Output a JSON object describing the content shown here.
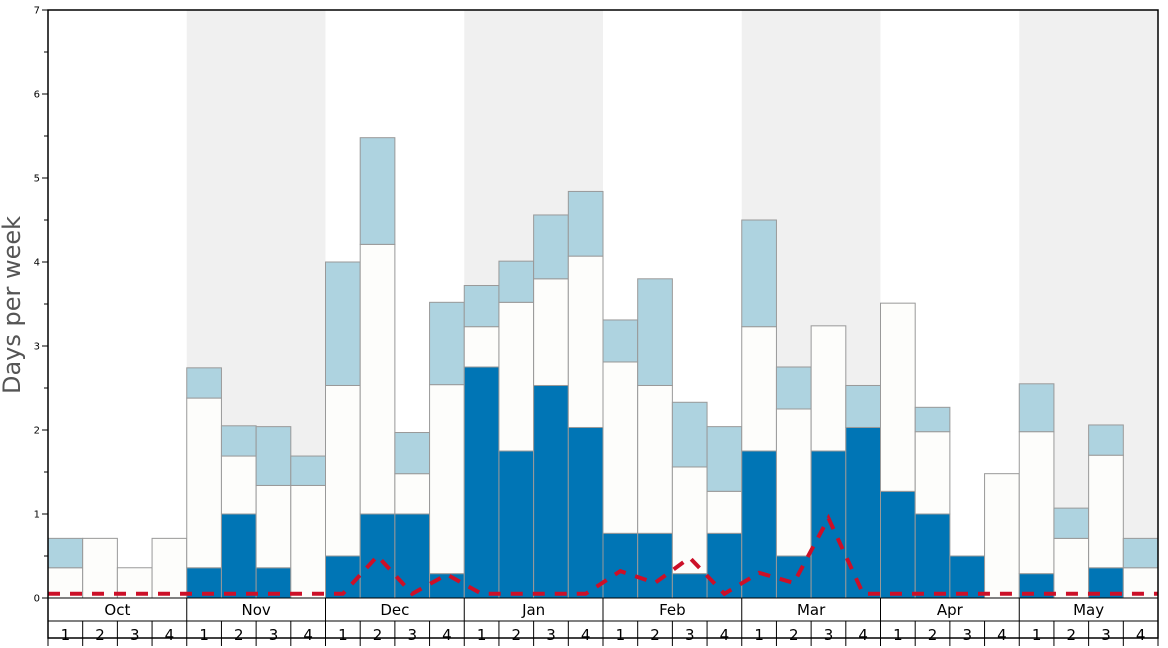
{
  "chart_data": {
    "type": "bar",
    "ylabel": "Days per week",
    "ylim": [
      0,
      7
    ],
    "y_ticks": [
      "0",
      "1",
      "2",
      "3",
      "4",
      "5",
      "6",
      "7"
    ],
    "months": [
      "Oct",
      "Nov",
      "Dec",
      "Jan",
      "Feb",
      "Mar",
      "Apr",
      "May"
    ],
    "weeks_per_month": [
      "1",
      "2",
      "3",
      "4"
    ],
    "series": [
      {
        "role": "dark",
        "values": [
          0,
          0,
          0,
          0,
          0.36,
          1,
          0.36,
          0,
          0.5,
          1,
          1,
          0.29,
          2.75,
          1.75,
          2.53,
          2.03,
          0.77,
          0.77,
          0.29,
          0.77,
          1.75,
          0.5,
          1.75,
          2.03,
          1.27,
          1,
          0.5,
          0,
          0.29,
          0,
          0.36,
          0
        ]
      },
      {
        "role": "white",
        "values": [
          0.36,
          0.71,
          0.36,
          0.71,
          2.02,
          0.69,
          0.98,
          1.34,
          2.03,
          3.21,
          0.48,
          2.25,
          0.48,
          1.77,
          1.27,
          2.04,
          2.04,
          1.76,
          1.27,
          0.5,
          1.48,
          1.75,
          1.49,
          0,
          2.24,
          0.98,
          0,
          1.48,
          1.69,
          0.71,
          1.34,
          0.36
        ]
      },
      {
        "role": "light",
        "values": [
          0.35,
          0,
          0,
          0,
          0.36,
          0.36,
          0.7,
          0.35,
          1.47,
          1.27,
          0.49,
          0.98,
          0.49,
          0.49,
          0.76,
          0.77,
          0.5,
          1.27,
          0.77,
          0.77,
          1.27,
          0.5,
          0,
          0.5,
          0,
          0.29,
          0,
          0,
          0.57,
          0.36,
          0.36,
          0.35
        ]
      },
      {
        "role": "dashed-line",
        "values": [
          0.05,
          0.05,
          0.05,
          0.05,
          0.05,
          0.05,
          0.05,
          0.05,
          0.05,
          0.5,
          0.05,
          0.28,
          0.05,
          0.05,
          0.05,
          0.05,
          0.32,
          0.18,
          0.48,
          0.05,
          0.3,
          0.18,
          0.95,
          0.05,
          0.05,
          0.05,
          0.05,
          0.05,
          0.05,
          0.05,
          0.05,
          0.05
        ]
      }
    ],
    "grid": false,
    "colors": {
      "dark": "#0075b5",
      "white": "#fdfdfb",
      "light": "#aed3e0",
      "dashed_line": "#cc1028",
      "band_shaded": "#f0f0f0",
      "bar_edge": "#999999"
    }
  }
}
